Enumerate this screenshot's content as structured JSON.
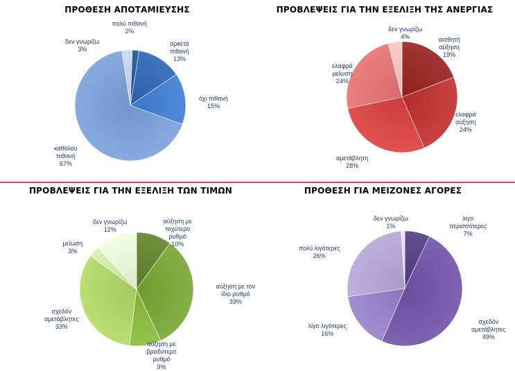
{
  "chart_data": [
    {
      "type": "pie",
      "title": "ΠΡΟΘΕΣΗ ΑΠΟΤΑΜΙΕΥΣΗΣ",
      "categories": [
        "πολύ πιθανή",
        "αρκετά πιθανή",
        "όχι πιθανή",
        "καθόλου πιθανή",
        "δεν γνωρίζω"
      ],
      "category_lines": [
        [
          "πολύ πιθανή"
        ],
        [
          "αρκετά",
          "πιθανή"
        ],
        [
          "όχι πιθανή"
        ],
        [
          "καθόλου",
          "πιθανή"
        ],
        [
          "δεν γνωρίζω"
        ]
      ],
      "values": [
        2,
        13,
        15,
        67,
        3
      ],
      "value_labels": [
        "2%",
        "13%",
        "15%",
        "67%",
        "3%"
      ],
      "colors": [
        "#1f4e8c",
        "#2b5ea8",
        "#3a74c4",
        "#7394c8",
        "#b7c6e0"
      ]
    },
    {
      "type": "pie",
      "title": "ΠΡΟΒΛΕΨΕΙΣ ΓΙΑ ΤΗΝ ΕΞΕΛΙΞΗ ΤΗΣ ΑΝΕΡΓΙΑΣ",
      "categories": [
        "αισθητή αύξηση",
        "ελαφρά αύξηση",
        "αμετάβλητη",
        "ελαφρά μείωση",
        "δεν γνωρίζω"
      ],
      "category_lines": [
        [
          "αισθητή",
          "αύξηση"
        ],
        [
          "ελαφρά",
          "αύξηση"
        ],
        [
          "αμετάβλητη"
        ],
        [
          "ελαφρά",
          "μείωση"
        ],
        [
          "δεν γνωρίζω"
        ]
      ],
      "values": [
        19,
        24,
        28,
        24,
        4
      ],
      "value_labels": [
        "19%",
        "24%",
        "28%",
        "24%",
        "4%"
      ],
      "colors": [
        "#8e1f1f",
        "#b52a2a",
        "#cc3b3b",
        "#d66a6a",
        "#e9b4b4"
      ]
    },
    {
      "type": "pie",
      "title": "ΠΡΟΒΛΕΨΕΙΣ ΓΙΑ ΤΗΝ ΕΞΕΛΙΞΗ ΤΩΝ ΤΙΜΩΝ",
      "categories": [
        "αύξηση με ταχύτερο ρυθμό",
        "αύξηση με τον ίδιο ρυθμό",
        "αύξηση με βραδύτερο ρυθμό",
        "σχεδόν αμετάβλητες",
        "μείωση",
        "δεν γνωρίζω"
      ],
      "category_lines": [
        [
          "αύξηση με",
          "ταχύτερο",
          "ρυθμό"
        ],
        [
          "αύξηση με τον",
          "ίδιο ρυθμό"
        ],
        [
          "αύξηση με",
          "βραδύτερο",
          "ρυθμό"
        ],
        [
          "σχεδόν",
          "αμετάβλητες"
        ],
        [
          "μείωση"
        ],
        [
          "δεν γνωρίζω"
        ]
      ],
      "values": [
        10,
        33,
        9,
        33,
        3,
        12
      ],
      "value_labels": [
        "10%",
        "33%",
        "9%",
        "33%",
        "3%",
        "12%"
      ],
      "colors": [
        "#5a7a2a",
        "#6f9a2f",
        "#7fae36",
        "#a3c95e",
        "#c6dc9c",
        "#dde8cc"
      ]
    },
    {
      "type": "pie",
      "title": "ΠΡΟΘΕΣΗ ΓΙΑ ΜΕΙΖΟΝΕΣ ΑΓΟΡΕΣ",
      "categories": [
        "λίγο περισσότερες",
        "σχεδόν αμετάβλητες",
        "λίγο λιγότερες",
        "πολύ λιγότερες",
        "δεν γνωρίζω"
      ],
      "category_lines": [
        [
          "λίγο",
          "περισσότερες"
        ],
        [
          "σχεδόν",
          "αμετάβλητες"
        ],
        [
          "λίγο λιγότερες"
        ],
        [
          "πολύ λιγότερες"
        ],
        [
          "δεν γνωρίζω"
        ]
      ],
      "values": [
        7,
        49,
        16,
        26,
        1
      ],
      "value_labels": [
        "7%",
        "49%",
        "16%",
        "26%",
        "1%"
      ],
      "colors": [
        "#4b3a7a",
        "#6a4c9c",
        "#8a78bb",
        "#a89ac6",
        "#d3cce2"
      ]
    }
  ]
}
